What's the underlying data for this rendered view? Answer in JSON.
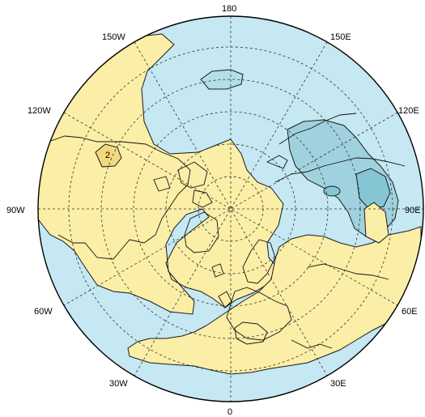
{
  "map": {
    "projection": "north-polar-stereographic",
    "colors": {
      "positive_fill": "#fbeea6",
      "negative_fill": "#c5e8f3",
      "deep_negative_fill": "#9fd2de",
      "contour_line": "#1b1b1b",
      "coastline": "#111111",
      "graticule": "#333333",
      "outline": "#000000"
    },
    "contour_labels": [
      "2"
    ],
    "longitude_labels": {
      "top": "180",
      "top_right": "150E",
      "right_upper": "120E",
      "right_mid": "90E",
      "right_lower": "60E",
      "bottom_right": "30E",
      "bottom": "0",
      "bottom_left": "30W",
      "left_lower": "60W",
      "left_mid": "90W",
      "left_upper": "120W",
      "top_left": "150W"
    }
  }
}
